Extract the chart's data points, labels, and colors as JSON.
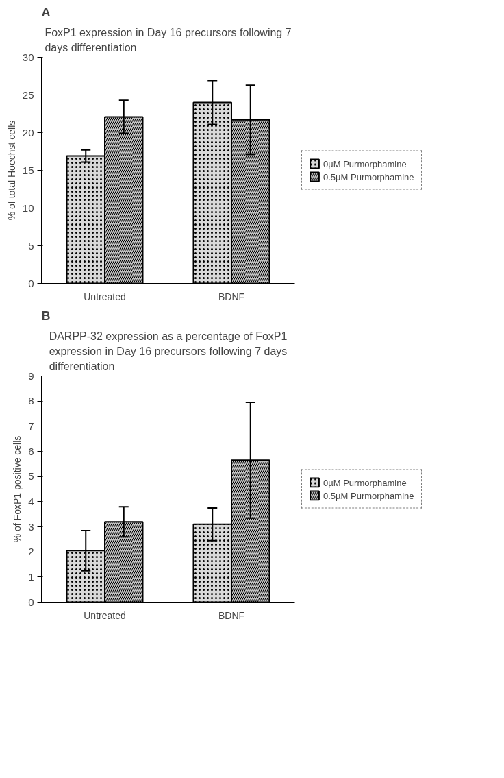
{
  "chart_data": [
    {
      "type": "bar",
      "title": "FoxP1 expression in Day 16 precursors following 7 days differentiation",
      "ylabel": "% of total Hoechst cells",
      "annotations": [
        "A"
      ],
      "categories": [
        "Untreated",
        "BDNF"
      ],
      "series": [
        {
          "name": "0µM Purmorphamine",
          "color": "#d9d9d9",
          "values": [
            16.9,
            24.0
          ],
          "errors": [
            0.8,
            2.9
          ]
        },
        {
          "name": "0.5µM Purmorphamine",
          "color": "#bfbfbf",
          "values": [
            22.1,
            21.7
          ],
          "errors": [
            2.2,
            4.6
          ]
        }
      ],
      "ylim": [
        0,
        30
      ],
      "yticks": [
        0,
        5,
        10,
        15,
        20,
        25,
        30
      ],
      "grid": false,
      "legend": "right"
    },
    {
      "type": "bar",
      "title": "DARPP-32 expression as a percentage of FoxP1 expression in Day 16 precursors following 7 days differentiation",
      "ylabel": "% of FoxP1 positive cells",
      "annotations": [
        "B"
      ],
      "categories": [
        "Untreated",
        "BDNF"
      ],
      "series": [
        {
          "name": "0µM Purmorphamine",
          "color": "#d9d9d9",
          "values": [
            2.05,
            3.1
          ],
          "errors": [
            0.8,
            0.65
          ]
        },
        {
          "name": "0.5µM Purmorphamine",
          "color": "#bfbfbf",
          "values": [
            3.2,
            5.65
          ],
          "errors": [
            0.6,
            2.3
          ]
        }
      ],
      "ylim": [
        0,
        9
      ],
      "yticks": [
        0,
        1,
        2,
        3,
        4,
        5,
        6,
        7,
        8,
        9
      ],
      "grid": false,
      "legend": "right"
    }
  ]
}
